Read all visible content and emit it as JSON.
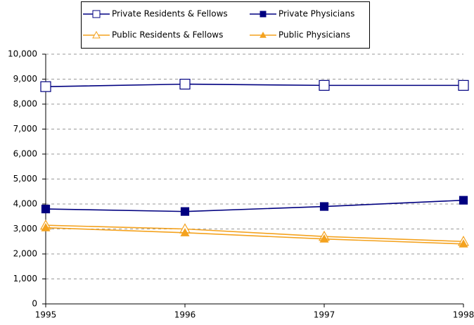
{
  "chart_data": {
    "type": "line",
    "categories": [
      "1995",
      "1996",
      "1997",
      "1998"
    ],
    "series": [
      {
        "name": "Private Residents & Fellows",
        "color": "#000080",
        "marker": "square",
        "filled": false,
        "values": [
          8700,
          8800,
          8750,
          8750
        ]
      },
      {
        "name": "Private Physicians",
        "color": "#000080",
        "marker": "square",
        "filled": true,
        "values": [
          3800,
          3700,
          3900,
          4150
        ]
      },
      {
        "name": "Public Residents & Fellows",
        "color": "#f4a21e",
        "marker": "triangle",
        "filled": false,
        "values": [
          3150,
          3000,
          2700,
          2500
        ]
      },
      {
        "name": "Public Physicians",
        "color": "#f4a21e",
        "marker": "triangle",
        "filled": true,
        "values": [
          3050,
          2850,
          2600,
          2400
        ]
      }
    ],
    "ylim": [
      0,
      10000
    ],
    "yticks": [
      0,
      {
        "value": 1000,
        "label": "1,000"
      },
      {
        "value": 2000,
        "label": "2,000"
      },
      {
        "value": 3000,
        "label": "3,000"
      },
      {
        "value": 4000,
        "label": "4,000"
      },
      {
        "value": 5000,
        "label": "5,000"
      },
      {
        "value": 6000,
        "label": "6,000"
      },
      {
        "value": 7000,
        "label": "7,000"
      },
      {
        "value": 8000,
        "label": "8,000"
      },
      {
        "value": 9000,
        "label": "9,000"
      },
      {
        "value": 10000,
        "label": "10,000"
      }
    ],
    "grid": true,
    "legend": "top"
  }
}
